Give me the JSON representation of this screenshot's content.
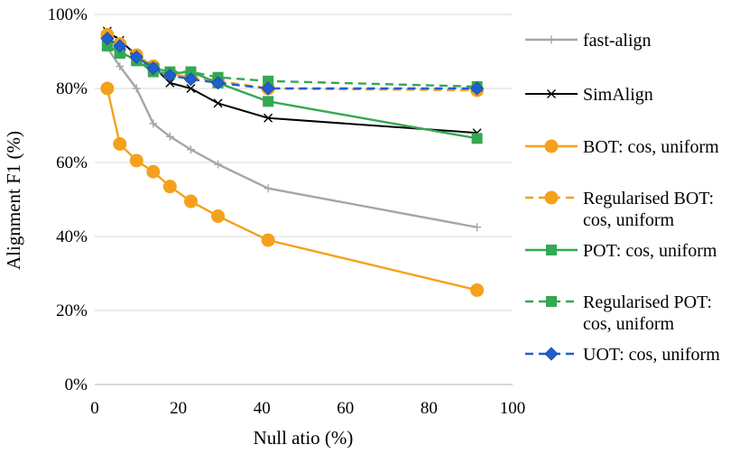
{
  "chart_data": {
    "type": "line",
    "title": "",
    "xlabel": "Null atio (%)",
    "ylabel": "Alignment F1 (%)",
    "xlim": [
      0,
      100
    ],
    "ylim": [
      0,
      100
    ],
    "x_ticks": [
      0,
      20,
      40,
      60,
      80,
      100
    ],
    "y_ticks": [
      0,
      20,
      40,
      60,
      80,
      100
    ],
    "x_tick_labels": [
      "0",
      "20",
      "40",
      "60",
      "80",
      "100"
    ],
    "y_tick_labels": [
      "0%",
      "20%",
      "40%",
      "60%",
      "80%",
      "100%"
    ],
    "grid": "horizontal",
    "legend_position": "right",
    "series": [
      {
        "name": "fast-align",
        "legend_lines": [
          "fast-align"
        ],
        "color": "#a6a6a6",
        "dash": "solid",
        "marker": "plus",
        "x": [
          3,
          6,
          10,
          14,
          18,
          23,
          29.5,
          41.5,
          91.5
        ],
        "y": [
          91,
          86,
          80,
          70.5,
          67,
          63.5,
          59.5,
          53,
          42.5
        ]
      },
      {
        "name": "SimAlign",
        "legend_lines": [
          "SimAlign"
        ],
        "color": "#000000",
        "dash": "solid",
        "marker": "x",
        "x": [
          3,
          6,
          10,
          14,
          18,
          23,
          29.5,
          41.5,
          91.5
        ],
        "y": [
          95.5,
          93,
          89,
          86,
          81.5,
          80,
          76,
          72,
          68
        ]
      },
      {
        "name": "BOT: cos, uniform",
        "legend_lines": [
          "BOT: cos, uniform"
        ],
        "color": "#f5a11c",
        "dash": "solid",
        "marker": "circle",
        "x": [
          3,
          6,
          10,
          14,
          18,
          23,
          29.5,
          41.5,
          91.5
        ],
        "y": [
          80,
          65,
          60.5,
          57.5,
          53.5,
          49.5,
          45.5,
          39,
          25.5
        ]
      },
      {
        "name": "Regularised BOT: cos, uniform",
        "legend_lines": [
          "Regularised BOT:",
          "cos, uniform"
        ],
        "color": "#f5a11c",
        "dash": "dashed",
        "marker": "circle",
        "x": [
          3,
          6,
          10,
          14,
          18,
          23,
          29.5,
          41.5,
          91.5
        ],
        "y": [
          94.5,
          92,
          89,
          86,
          84,
          83,
          82,
          80,
          79.5
        ]
      },
      {
        "name": "POT: cos, uniform",
        "legend_lines": [
          "POT: cos, uniform"
        ],
        "color": "#34a853",
        "dash": "solid",
        "marker": "square",
        "x": [
          3,
          6,
          10,
          14,
          18,
          23,
          29.5,
          41.5,
          91.5
        ],
        "y": [
          91.5,
          90,
          87.5,
          84.5,
          84,
          84.5,
          81.5,
          76.5,
          66.5
        ]
      },
      {
        "name": "Regularised POT: cos, uniform",
        "legend_lines": [
          "Regularised POT:",
          "cos, uniform"
        ],
        "color": "#34a853",
        "dash": "dashed",
        "marker": "square",
        "x": [
          3,
          6,
          10,
          14,
          18,
          23,
          29.5,
          41.5,
          91.5
        ],
        "y": [
          91.5,
          89.5,
          87.5,
          85.5,
          84.5,
          84.5,
          83,
          82,
          80.5
        ]
      },
      {
        "name": "UOT: cos, uniform",
        "legend_lines": [
          "UOT: cos, uniform"
        ],
        "color": "#1f5fd1",
        "dash": "dashed",
        "marker": "diamond",
        "x": [
          3,
          6,
          10,
          14,
          18,
          23,
          29.5,
          41.5,
          91.5
        ],
        "y": [
          93.5,
          91.5,
          88.5,
          85.5,
          83.5,
          82.5,
          81.5,
          80,
          80
        ]
      }
    ]
  }
}
